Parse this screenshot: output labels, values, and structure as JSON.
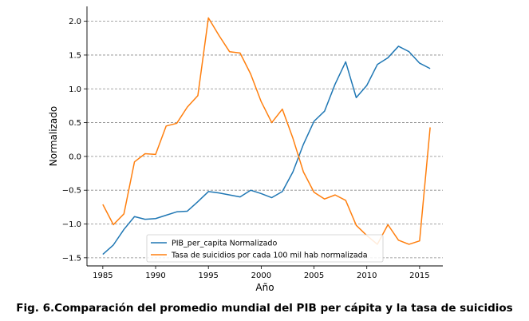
{
  "chart_data": {
    "type": "line",
    "xlabel": "Año",
    "ylabel": "Normalizado",
    "xlim": [
      1983.5,
      2017.2
    ],
    "ylim": [
      -1.62,
      2.22
    ],
    "x_ticks": [
      1985,
      1990,
      1995,
      2000,
      2005,
      2010,
      2015
    ],
    "y_ticks": [
      -1.5,
      -1.0,
      -0.5,
      0.0,
      0.5,
      1.0,
      1.5,
      2.0
    ],
    "y_tick_labels": [
      "−1.5",
      "−1.0",
      "−0.5",
      "0.0",
      "0.5",
      "1.0",
      "1.5",
      "2.0"
    ],
    "grid": "y-dashed",
    "legend_position": "lower-center",
    "x": [
      1985,
      1986,
      1987,
      1988,
      1989,
      1990,
      1991,
      1992,
      1993,
      1994,
      1995,
      1996,
      1997,
      1998,
      1999,
      2000,
      2001,
      2002,
      2003,
      2004,
      2005,
      2006,
      2007,
      2008,
      2009,
      2010,
      2011,
      2012,
      2013,
      2014,
      2015,
      2016
    ],
    "series": [
      {
        "name": "PIB_per_capita Normalizado",
        "color": "#1f77b4",
        "values": [
          -1.45,
          -1.31,
          -1.08,
          -0.89,
          -0.93,
          -0.92,
          -0.87,
          -0.82,
          -0.81,
          -0.67,
          -0.52,
          -0.54,
          -0.57,
          -0.6,
          -0.5,
          -0.55,
          -0.61,
          -0.52,
          -0.23,
          0.18,
          0.52,
          0.67,
          1.07,
          1.4,
          0.87,
          1.05,
          1.36,
          1.46,
          1.63,
          1.55,
          1.38,
          1.3
        ]
      },
      {
        "name": "Tasa de suicidios por cada 100 mil hab normalizada",
        "color": "#ff7f0e",
        "values": [
          -0.71,
          -1.01,
          -0.85,
          -0.08,
          0.04,
          0.03,
          0.45,
          0.49,
          0.73,
          0.9,
          2.05,
          1.79,
          1.55,
          1.53,
          1.22,
          0.81,
          0.5,
          0.7,
          0.27,
          -0.23,
          -0.53,
          -0.63,
          -0.57,
          -0.65,
          -1.02,
          -1.17,
          -1.3,
          -1.01,
          -1.24,
          -1.3,
          -1.25,
          0.43
        ]
      }
    ]
  },
  "caption": "Fig. 6.Comparación del promedio mundial del PIB per cápita y la tasa de suicidios"
}
